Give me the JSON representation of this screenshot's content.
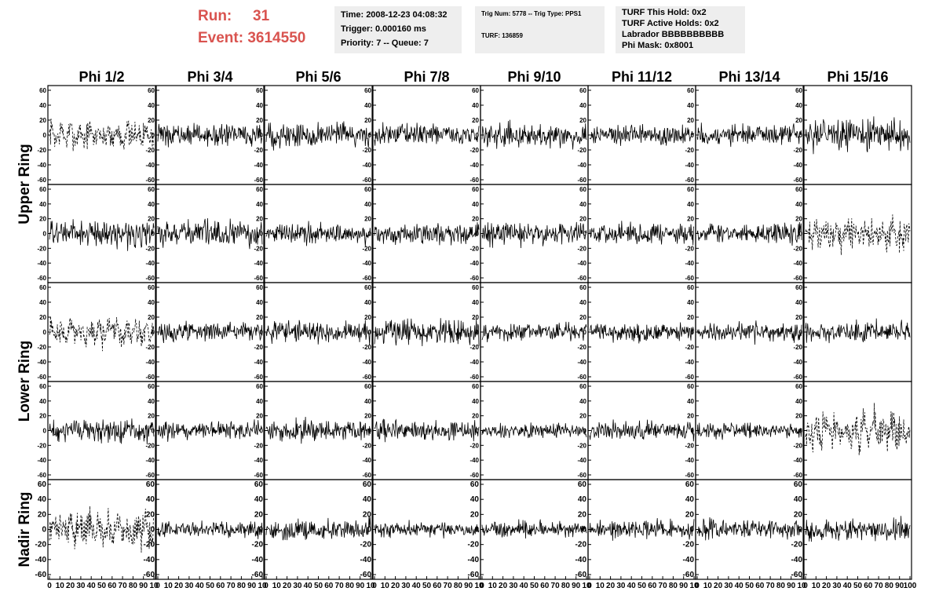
{
  "header": {
    "run_label": "Run:",
    "run_value": "31",
    "event_label": "Event:",
    "event_value": "3614550"
  },
  "info_time": {
    "time": "Time: 2008-12-23 04:08:32",
    "trigger": "Trigger: 0.000160 ms",
    "priority": "Priority: 7 -- Queue: 7"
  },
  "info_trig": {
    "trig": "Trig Num: 5778 -- Trig Type: PPS1",
    "turf": "TURF: 136859"
  },
  "info_turf": {
    "hold": "TURF This Hold: 0x2",
    "active": "TURF Active Holds: 0x2",
    "labrador": "Labrador BBBBBBBBBB",
    "mask": "Phi Mask: 0x8001"
  },
  "chart_data": {
    "type": "line",
    "columns": [
      "Phi 1/2",
      "Phi 3/4",
      "Phi 5/6",
      "Phi 7/8",
      "Phi 9/10",
      "Phi 11/12",
      "Phi 13/14",
      "Phi 15/16"
    ],
    "ring_labels": [
      "Upper Ring",
      "Lower Ring",
      "Nadir Ring"
    ],
    "rows": [
      {
        "ring": "Upper Ring",
        "dashed_columns": [
          0
        ],
        "amplitude": [
          25,
          20,
          25,
          20,
          22,
          20,
          20,
          30
        ]
      },
      {
        "ring": "Upper Ring",
        "dashed_columns": [
          7
        ],
        "amplitude": [
          25,
          25,
          20,
          20,
          22,
          20,
          20,
          30
        ]
      },
      {
        "ring": "Lower Ring",
        "dashed_columns": [
          0
        ],
        "amplitude": [
          25,
          18,
          20,
          25,
          18,
          18,
          18,
          20
        ]
      },
      {
        "ring": "Lower Ring",
        "dashed_columns": [
          7
        ],
        "amplitude": [
          22,
          18,
          20,
          20,
          14,
          18,
          15,
          35
        ]
      },
      {
        "ring": "Nadir Ring",
        "dashed_columns": [
          0
        ],
        "amplitude": [
          30,
          15,
          20,
          15,
          15,
          18,
          18,
          20
        ]
      }
    ],
    "y_ticks_rows_1_to_4": [
      "60",
      "40",
      "20",
      "0",
      "-20",
      "-40",
      "-60"
    ],
    "y_ticks_row_5": [
      "60",
      "40",
      "20",
      "0",
      "-20",
      "-40",
      "-60"
    ],
    "x_ticks": [
      "0",
      "10",
      "20",
      "30",
      "40",
      "50",
      "60",
      "70",
      "80",
      "90",
      "100"
    ],
    "x_ticks_compact": [
      "0",
      "10",
      "20",
      "30",
      "40",
      "50",
      "60",
      "70",
      "80",
      "90",
      "10"
    ],
    "x_range": [
      0,
      100
    ],
    "y_range": [
      -60,
      60
    ],
    "grid": false,
    "samples_per_panel": 200
  }
}
